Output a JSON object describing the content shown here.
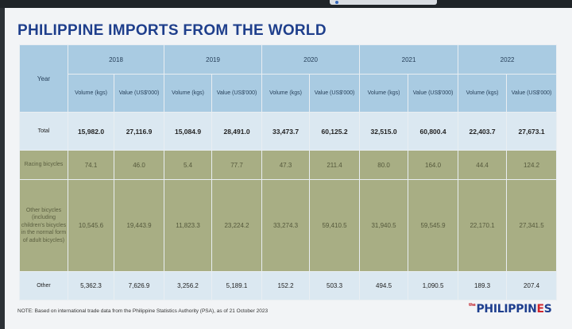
{
  "title": "PHILIPPINE IMPORTS FROM THE WORLD",
  "header": {
    "year_label": "Year",
    "years": [
      "2018",
      "2019",
      "2020",
      "2021",
      "2022"
    ],
    "volume_label": "Volume (kgs)",
    "value_label": "Value (US$'000)"
  },
  "rows": [
    {
      "label": "Total",
      "values": [
        "15,982.0",
        "27,116.9",
        "15,084.9",
        "28,491.0",
        "33,473.7",
        "60,125.2",
        "32,515.0",
        "60,800.4",
        "22,403.7",
        "27,673.1"
      ]
    },
    {
      "label": "Racing bicycles",
      "values": [
        "74.1",
        "46.0",
        "5.4",
        "77.7",
        "47.3",
        "211.4",
        "80.0",
        "164.0",
        "44.4",
        "124.2"
      ]
    },
    {
      "label": "Other bicycles (including children's bicycles in the normal form of adult bicycles)",
      "values": [
        "10,545.6",
        "19,443.9",
        "11,823.3",
        "23,224.2",
        "33,274.3",
        "59,410.5",
        "31,940.5",
        "59,545.9",
        "22,170.1",
        "27,341.5"
      ]
    },
    {
      "label": "Other",
      "values": [
        "5,362.3",
        "7,626.9",
        "3,256.2",
        "5,189.1",
        "152.2",
        "503.3",
        "494.5",
        "1,090.5",
        "189.3",
        "207.4"
      ]
    }
  ],
  "note": "NOTE: Based on international trade data from the Philippine Statistics Authority (PSA), as of 21 October 2023",
  "logo": {
    "prefix": "the",
    "text_a": "PHILIPPIN",
    "text_e": "E",
    "text_b": "S"
  },
  "colors": {
    "header": "#a9cbe2",
    "total_row": "#dbe8f1",
    "green_rows": "#a8ae84",
    "title": "#1f3f8c"
  }
}
